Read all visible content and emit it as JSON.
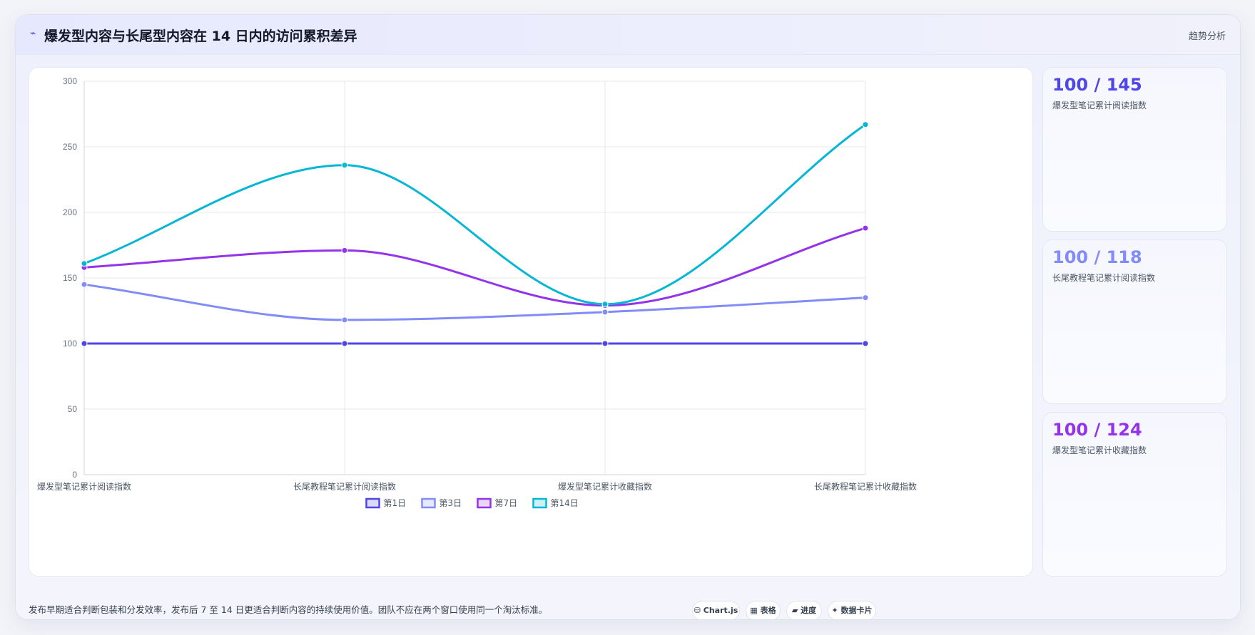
{
  "header": {
    "icon": "trend-wave-icon",
    "title": "爆发型内容与长尾型内容在 14 日内的访问累积差异",
    "tag": "趋势分析"
  },
  "stats": [
    {
      "value": "100 / 145",
      "label": "爆发型笔记累计阅读指数",
      "color": "#4f46e5"
    },
    {
      "value": "100 / 118",
      "label": "长尾教程笔记累计阅读指数",
      "color": "#818cf8"
    },
    {
      "value": "100 / 124",
      "label": "爆发型笔记累计收藏指数",
      "color": "#9333ea"
    }
  ],
  "footer": {
    "note": "发布早期适合判断包装和分发效率，发布后 7 至 14 日更适合判断内容的持续使用价值。团队不应在两个窗口使用同一个淘汰标准。",
    "pills": [
      {
        "icon": "database-icon",
        "glyph": "⛁",
        "label": "Chart.js"
      },
      {
        "icon": "table-icon",
        "glyph": "▦",
        "label": "表格"
      },
      {
        "icon": "progress-icon",
        "glyph": "▰",
        "label": "进度"
      },
      {
        "icon": "sparkle-icon",
        "glyph": "✦",
        "label": "数据卡片"
      }
    ]
  },
  "chart_data": {
    "type": "line",
    "categories": [
      "爆发型笔记累计阅读指数",
      "长尾教程笔记累计阅读指数",
      "爆发型笔记累计收藏指数",
      "长尾教程笔记累计收藏指数"
    ],
    "series": [
      {
        "name": "第1日",
        "values": [
          100,
          100,
          100,
          100
        ],
        "color": "#4f46e5"
      },
      {
        "name": "第3日",
        "values": [
          145,
          118,
          124,
          135
        ],
        "color": "#818cf8"
      },
      {
        "name": "第7日",
        "values": [
          158,
          171,
          129,
          188
        ],
        "color": "#9333ea"
      },
      {
        "name": "第14日",
        "values": [
          161,
          236,
          130,
          267
        ],
        "color": "#06b6d4"
      }
    ],
    "ylim": [
      0,
      300
    ],
    "yticks": [
      0,
      50,
      100,
      150,
      200,
      250,
      300
    ],
    "grid": true,
    "smooth": true,
    "legend": "bottom"
  }
}
